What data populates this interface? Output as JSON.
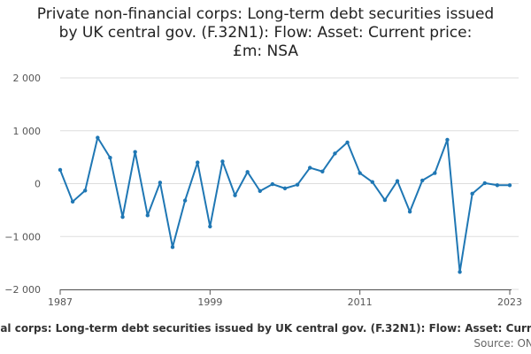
{
  "title_lines": [
    "Private non-financial corps: Long-term debt securities issued",
    "by UK central gov. (F.32N1): Flow: Asset: Current price:",
    "£m: NSA"
  ],
  "legend_label": "Private non-financial corps: Long-term debt securities issued by UK central gov. (F.32N1): Flow: Asset: Current price: £m: NSA",
  "source_label": "Source: ONS",
  "colors": {
    "line": "#1f77b4",
    "grid": "#dddddd",
    "axis": "#555555"
  },
  "chart_data": {
    "type": "line",
    "title": "Private non-financial corps: Long-term debt securities issued by UK central gov. (F.32N1): Flow: Asset: Current price: £m: NSA",
    "xlabel": "",
    "ylabel": "",
    "ylim": [
      -2000,
      2000
    ],
    "xlim": [
      1987,
      2023
    ],
    "y_ticks": [
      -2000,
      -1000,
      0,
      1000,
      2000
    ],
    "y_tick_labels": [
      "−2 000",
      "−1 000",
      "0",
      "1 000",
      "2 000"
    ],
    "x_ticks": [
      1987,
      1999,
      2011,
      2023
    ],
    "x_tick_labels": [
      "1987",
      "1999",
      "2011",
      "2023"
    ],
    "grid": true,
    "series": [
      {
        "name": "Private non-financial corps: Long-term debt securities issued by UK central gov. (F.32N1): Flow: Asset: Current price: £m: NSA",
        "x": [
          1987,
          1988,
          1989,
          1990,
          1991,
          1992,
          1993,
          1994,
          1995,
          1996,
          1997,
          1998,
          1999,
          2000,
          2001,
          2002,
          2003,
          2004,
          2005,
          2006,
          2007,
          2008,
          2009,
          2010,
          2011,
          2012,
          2013,
          2014,
          2015,
          2016,
          2017,
          2018,
          2019,
          2020,
          2021,
          2022,
          2023
        ],
        "values": [
          260,
          -340,
          -130,
          870,
          490,
          -630,
          600,
          -600,
          20,
          -1200,
          -320,
          400,
          -810,
          420,
          -220,
          220,
          -140,
          -10,
          -90,
          -20,
          300,
          230,
          570,
          780,
          200,
          30,
          -310,
          50,
          -530,
          60,
          200,
          830,
          -1670,
          -190,
          10,
          -30,
          -30
        ]
      }
    ]
  }
}
